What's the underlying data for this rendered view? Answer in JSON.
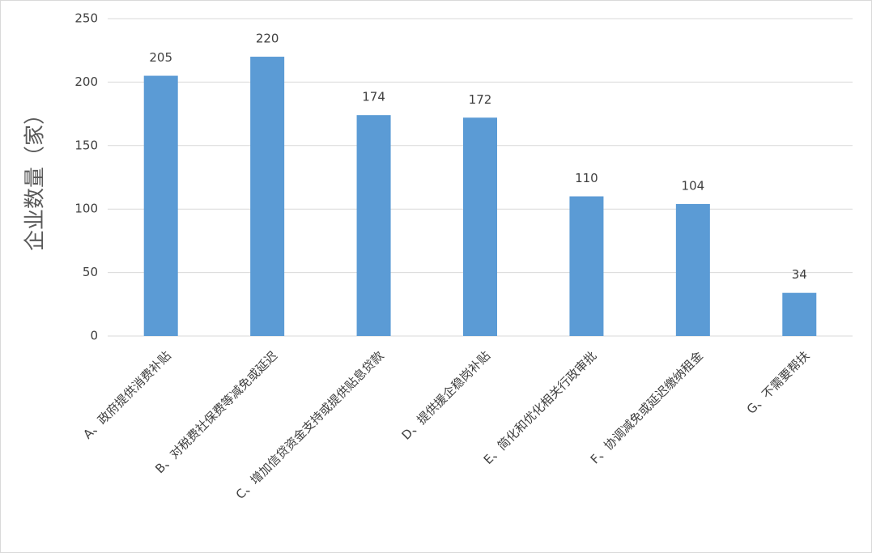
{
  "chart_data": {
    "type": "bar",
    "y_label": "企业数量（家）",
    "categories": [
      "A、政府提供消费补贴",
      "B、对税费社保费等减免或延迟",
      "C、增加信贷资金支持或提供贴息贷款",
      "D、提供援企稳岗补贴",
      "E、简化和优化相关行政审批",
      "F、协调减免或延迟缴纳租金",
      "G、不需要帮扶"
    ],
    "values": [
      205,
      220,
      174,
      172,
      110,
      104,
      34
    ],
    "color": "#5b9bd5",
    "ylim": [
      0,
      250
    ],
    "yticks": [
      0,
      50,
      100,
      150,
      200,
      250
    ],
    "grid": true
  }
}
